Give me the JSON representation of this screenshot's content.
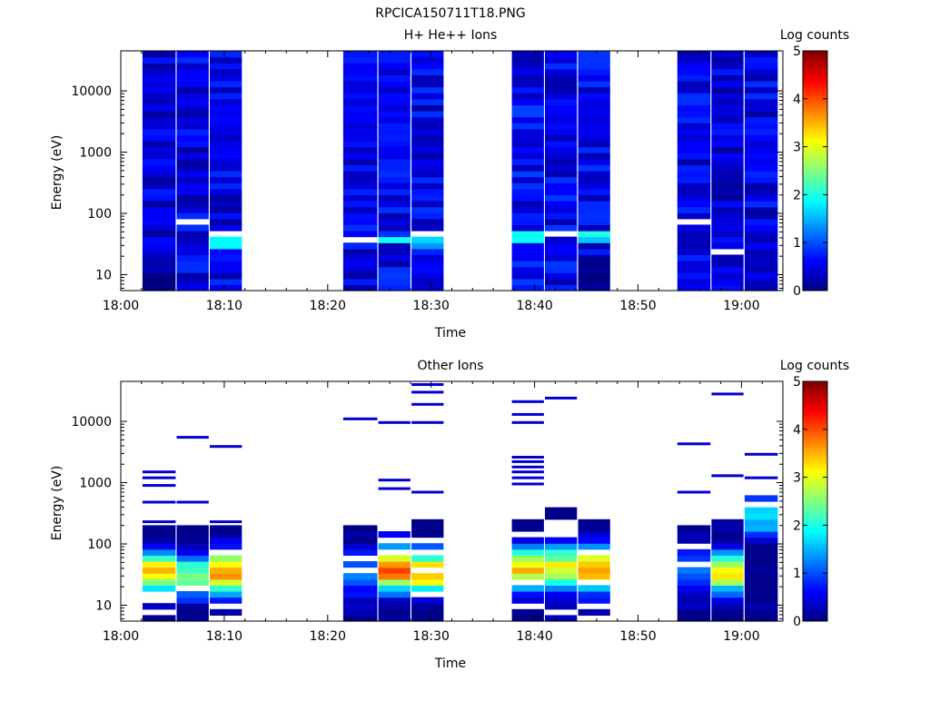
{
  "figure": {
    "title": "RPCICA150711T18.PNG"
  },
  "colors": {
    "background": "#ffffff",
    "axis": "#000000",
    "colormap": "jet",
    "gap_fill": "#ffffff"
  },
  "chart_data": [
    {
      "type": "heatmap",
      "title": "H+ He++ Ions",
      "xlabel": "Time",
      "ylabel": "Energy (eV)",
      "x_ticks": [
        "18:00",
        "18:10",
        "18:20",
        "18:30",
        "18:40",
        "18:50",
        "19:00"
      ],
      "x_range_minutes": [
        0,
        64
      ],
      "y_scale": "log",
      "y_ticks": [
        10,
        100,
        1000,
        10000
      ],
      "y_range_eV": [
        5.5,
        45000
      ],
      "colorbar": {
        "label": "Log counts",
        "range": [
          0,
          5
        ],
        "ticks": [
          "0",
          "1",
          "2",
          "3",
          "4",
          "5"
        ]
      },
      "time_columns": [
        {
          "start_min": 2.1,
          "end_min": 5.3,
          "base": 0.45
        },
        {
          "start_min": 5.4,
          "end_min": 8.5,
          "base": 0.5,
          "white_bands_eV": [
            75
          ]
        },
        {
          "start_min": 8.6,
          "end_min": 11.7,
          "base": 0.5,
          "white_bands_eV": [
            48
          ]
        },
        {
          "start_min": 21.5,
          "end_min": 24.8,
          "base": 0.5,
          "white_bands_eV": [
            40
          ]
        },
        {
          "start_min": 24.9,
          "end_min": 28.0,
          "base": 0.55
        },
        {
          "start_min": 28.1,
          "end_min": 31.2,
          "base": 0.55,
          "white_bands_eV": [
            42
          ]
        },
        {
          "start_min": 37.8,
          "end_min": 40.9,
          "base": 0.6
        },
        {
          "start_min": 41.0,
          "end_min": 44.1,
          "base": 0.55,
          "white_bands_eV": [
            50
          ]
        },
        {
          "start_min": 44.2,
          "end_min": 47.3,
          "base": 0.55
        },
        {
          "start_min": 53.8,
          "end_min": 57.0,
          "base": 0.5,
          "white_bands_eV": [
            75
          ]
        },
        {
          "start_min": 57.1,
          "end_min": 60.2,
          "base": 0.45,
          "white_bands_eV": [
            22
          ]
        },
        {
          "start_min": 60.3,
          "end_min": 63.5,
          "base": 0.5
        }
      ],
      "features": [
        {
          "column": 2,
          "e_low": 25,
          "e_high": 48,
          "value": 2.0
        },
        {
          "column": 4,
          "e_low": 30,
          "e_high": 45,
          "value": 1.9
        },
        {
          "column": 5,
          "e_low": 25,
          "e_high": 42,
          "value": 1.6
        },
        {
          "column": 6,
          "e_low": 32,
          "e_high": 50,
          "value": 1.7
        },
        {
          "column": 8,
          "e_low": 32,
          "e_high": 48,
          "value": 1.8
        },
        {
          "column": 0,
          "e_low": 5.5,
          "e_high": 10,
          "value": 0.1
        },
        {
          "column": 8,
          "e_low": 5.5,
          "e_high": 20,
          "value": 0.15
        },
        {
          "column": 9,
          "e_low": 5.5,
          "e_high": 20,
          "value": 0.6
        }
      ]
    },
    {
      "type": "heatmap",
      "title": "Other Ions",
      "xlabel": "Time",
      "ylabel": "Energy (eV)",
      "x_ticks": [
        "18:00",
        "18:10",
        "18:20",
        "18:30",
        "18:40",
        "18:50",
        "19:00"
      ],
      "x_range_minutes": [
        0,
        64
      ],
      "y_scale": "log",
      "y_ticks": [
        10,
        100,
        1000,
        10000
      ],
      "y_range_eV": [
        5.5,
        45000
      ],
      "colorbar": {
        "label": "Log counts",
        "range": [
          0,
          5
        ],
        "ticks": [
          "0",
          "1",
          "2",
          "3",
          "4",
          "5"
        ]
      },
      "time_columns": [
        {
          "start_min": 2.1,
          "end_min": 5.3,
          "dense_top_eV": 200,
          "peak_eV": 35,
          "peak": 3.4,
          "sparse_lines_eV": [
            1500,
            1200,
            900,
            480,
            230
          ]
        },
        {
          "start_min": 5.4,
          "end_min": 8.5,
          "dense_top_eV": 200,
          "peak_eV": 30,
          "peak": 2.5,
          "sparse_lines_eV": [
            5500,
            480
          ]
        },
        {
          "start_min": 8.6,
          "end_min": 11.7,
          "dense_top_eV": 200,
          "peak_eV": 35,
          "peak": 3.6,
          "sparse_lines_eV": [
            3900,
            230
          ]
        },
        {
          "start_min": 21.5,
          "end_min": 24.8,
          "dense_top_eV": 200,
          "peak_eV": 35,
          "peak": 1.5,
          "sparse_lines_eV": [
            11000
          ]
        },
        {
          "start_min": 24.9,
          "end_min": 28.0,
          "dense_top_eV": 170,
          "peak_eV": 40,
          "peak": 4.0,
          "sparse_lines_eV": [
            9600,
            1100,
            800
          ]
        },
        {
          "start_min": 28.1,
          "end_min": 31.2,
          "dense_top_eV": 350,
          "peak_eV": 35,
          "peak": 3.6,
          "sparse_lines_eV": [
            40000,
            30000,
            19000,
            9600,
            700
          ]
        },
        {
          "start_min": 37.8,
          "end_min": 40.9,
          "dense_top_eV": 250,
          "peak_eV": 40,
          "peak": 3.4,
          "sparse_lines_eV": [
            21000,
            13000,
            9600,
            2600,
            2200,
            1800,
            1500,
            1200,
            950
          ]
        },
        {
          "start_min": 41.0,
          "end_min": 44.1,
          "dense_top_eV": 420,
          "peak_eV": 40,
          "peak": 3.2,
          "sparse_lines_eV": [
            24000
          ]
        },
        {
          "start_min": 44.2,
          "end_min": 47.3,
          "dense_top_eV": 250,
          "peak_eV": 40,
          "peak": 3.8,
          "sparse_lines_eV": []
        },
        {
          "start_min": 53.8,
          "end_min": 57.0,
          "dense_top_eV": 200,
          "peak_eV": 40,
          "peak": 1.3,
          "sparse_lines_eV": [
            4300,
            700
          ]
        },
        {
          "start_min": 57.1,
          "end_min": 60.2,
          "dense_top_eV": 270,
          "peak_eV": 35,
          "peak": 3.2,
          "sparse_lines_eV": [
            28000,
            1300
          ]
        },
        {
          "start_min": 60.3,
          "end_min": 63.5,
          "dense_top_eV": 600,
          "peak_eV": 300,
          "peak": 1.9,
          "sparse_lines_eV": [
            2900,
            1200
          ]
        }
      ]
    }
  ]
}
